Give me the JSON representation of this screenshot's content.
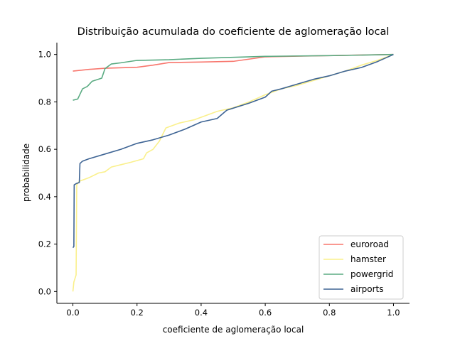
{
  "chart_data": {
    "type": "line",
    "title": "Distribuição acumulada do coeficiente de aglomeração local",
    "xlabel": "coeficiente de aglomeração local",
    "ylabel": "probabilidade",
    "xlim": [
      -0.05,
      1.05
    ],
    "ylim": [
      -0.05,
      1.05
    ],
    "xticks": [
      0.0,
      0.2,
      0.4,
      0.6,
      0.8,
      1.0
    ],
    "xtick_labels": [
      "0.0",
      "0.2",
      "0.4",
      "0.6",
      "0.8",
      "1.0"
    ],
    "yticks": [
      0.0,
      0.2,
      0.4,
      0.6,
      0.8,
      1.0
    ],
    "ytick_labels": [
      "0.0",
      "0.2",
      "0.4",
      "0.6",
      "0.8",
      "1.0"
    ],
    "grid": false,
    "legend_position": "lower-right",
    "series": [
      {
        "name": "euroroad",
        "color": "#f8766d",
        "points": [
          [
            0.0,
            0.93
          ],
          [
            0.05,
            0.937
          ],
          [
            0.1,
            0.942
          ],
          [
            0.2,
            0.946
          ],
          [
            0.25,
            0.955
          ],
          [
            0.3,
            0.966
          ],
          [
            0.4,
            0.968
          ],
          [
            0.5,
            0.971
          ],
          [
            0.6,
            0.99
          ],
          [
            0.7,
            0.993
          ],
          [
            1.0,
            1.0
          ]
        ]
      },
      {
        "name": "hamster",
        "color": "#faf08c",
        "points": [
          [
            0.0,
            0.0
          ],
          [
            0.003,
            0.04
          ],
          [
            0.01,
            0.07
          ],
          [
            0.012,
            0.45
          ],
          [
            0.02,
            0.465
          ],
          [
            0.05,
            0.48
          ],
          [
            0.08,
            0.5
          ],
          [
            0.1,
            0.505
          ],
          [
            0.12,
            0.525
          ],
          [
            0.15,
            0.535
          ],
          [
            0.18,
            0.545
          ],
          [
            0.22,
            0.56
          ],
          [
            0.23,
            0.585
          ],
          [
            0.25,
            0.6
          ],
          [
            0.27,
            0.635
          ],
          [
            0.29,
            0.69
          ],
          [
            0.33,
            0.71
          ],
          [
            0.38,
            0.725
          ],
          [
            0.42,
            0.745
          ],
          [
            0.45,
            0.76
          ],
          [
            0.5,
            0.775
          ],
          [
            0.55,
            0.8
          ],
          [
            0.6,
            0.83
          ],
          [
            0.65,
            0.855
          ],
          [
            0.7,
            0.87
          ],
          [
            0.75,
            0.89
          ],
          [
            0.8,
            0.91
          ],
          [
            0.85,
            0.93
          ],
          [
            0.9,
            0.955
          ],
          [
            0.95,
            0.975
          ],
          [
            1.0,
            1.0
          ]
        ]
      },
      {
        "name": "powergrid",
        "color": "#5aab82",
        "points": [
          [
            0.0,
            0.807
          ],
          [
            0.015,
            0.812
          ],
          [
            0.03,
            0.855
          ],
          [
            0.045,
            0.865
          ],
          [
            0.06,
            0.887
          ],
          [
            0.09,
            0.9
          ],
          [
            0.1,
            0.94
          ],
          [
            0.12,
            0.96
          ],
          [
            0.15,
            0.965
          ],
          [
            0.2,
            0.975
          ],
          [
            0.3,
            0.978
          ],
          [
            0.4,
            0.984
          ],
          [
            0.5,
            0.988
          ],
          [
            0.6,
            0.992
          ],
          [
            0.8,
            0.995
          ],
          [
            1.0,
            1.0
          ]
        ]
      },
      {
        "name": "airports",
        "color": "#3e6494",
        "points": [
          [
            0.0,
            0.185
          ],
          [
            0.003,
            0.19
          ],
          [
            0.004,
            0.45
          ],
          [
            0.01,
            0.455
          ],
          [
            0.02,
            0.46
          ],
          [
            0.022,
            0.54
          ],
          [
            0.03,
            0.55
          ],
          [
            0.05,
            0.56
          ],
          [
            0.1,
            0.58
          ],
          [
            0.15,
            0.6
          ],
          [
            0.2,
            0.625
          ],
          [
            0.25,
            0.64
          ],
          [
            0.3,
            0.66
          ],
          [
            0.35,
            0.685
          ],
          [
            0.4,
            0.715
          ],
          [
            0.45,
            0.73
          ],
          [
            0.48,
            0.765
          ],
          [
            0.55,
            0.795
          ],
          [
            0.6,
            0.82
          ],
          [
            0.62,
            0.845
          ],
          [
            0.65,
            0.855
          ],
          [
            0.7,
            0.875
          ],
          [
            0.75,
            0.895
          ],
          [
            0.8,
            0.91
          ],
          [
            0.85,
            0.93
          ],
          [
            0.9,
            0.945
          ],
          [
            0.95,
            0.97
          ],
          [
            1.0,
            1.0
          ]
        ]
      }
    ]
  }
}
